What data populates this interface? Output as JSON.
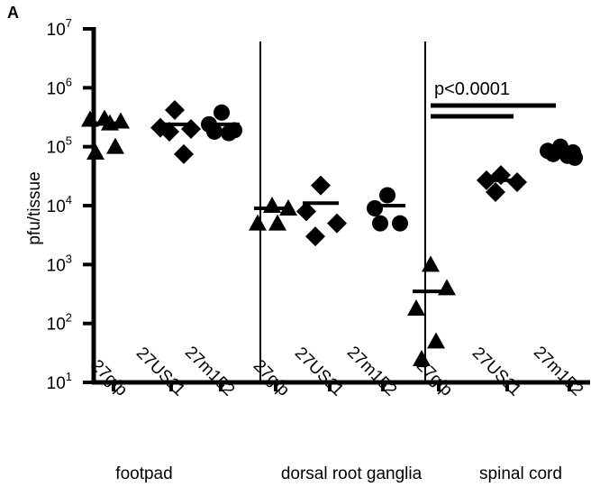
{
  "chart_data": {
    "type": "scatter",
    "panel_letter": "A",
    "ylabel": "pfu/tissue",
    "yscale": "log",
    "ylim": [
      10,
      10000000
    ],
    "yticks": [
      {
        "value": 10,
        "base": "10",
        "exp": "1"
      },
      {
        "value": 100,
        "base": "10",
        "exp": "2"
      },
      {
        "value": 1000,
        "base": "10",
        "exp": "3"
      },
      {
        "value": 10000,
        "base": "10",
        "exp": "4"
      },
      {
        "value": 100000,
        "base": "10",
        "exp": "5"
      },
      {
        "value": 1000000,
        "base": "10",
        "exp": "6"
      },
      {
        "value": 10000000,
        "base": "10",
        "exp": "7"
      }
    ],
    "groups": [
      {
        "name": "footpad",
        "categories": [
          {
            "label": "27gfp",
            "marker": "triangle",
            "values": [
              300000,
              270000,
              290000,
              250000,
              80000,
              100000
            ],
            "median": 250000
          },
          {
            "label": "27US11",
            "marker": "diamond",
            "values": [
              420000,
              210000,
              200000,
              180000,
              75000
            ],
            "median": 240000
          },
          {
            "label": "27m152",
            "marker": "circle",
            "values": [
              380000,
              240000,
              190000,
              180000,
              170000
            ],
            "median": 240000
          }
        ]
      },
      {
        "name": "dorsal root ganglia",
        "categories": [
          {
            "label": "27gfp",
            "marker": "triangle",
            "values": [
              10000,
              9000,
              5000,
              5000
            ],
            "median": 9000
          },
          {
            "label": "27US11",
            "marker": "diamond",
            "values": [
              22000,
              8000,
              5000,
              3000
            ],
            "median": 11000
          },
          {
            "label": "27m152",
            "marker": "circle",
            "values": [
              15000,
              9000,
              5000,
              5000
            ],
            "median": 10000
          }
        ]
      },
      {
        "name": "spinal cord",
        "categories": [
          {
            "label": "27gfp",
            "marker": "triangle",
            "values": [
              1000,
              400,
              180,
              50,
              25
            ],
            "median": 350
          },
          {
            "label": "27US11",
            "marker": "diamond",
            "values": [
              33000,
              27000,
              25000,
              17000
            ],
            "median": 27000
          },
          {
            "label": "27m152",
            "marker": "circle",
            "values": [
              100000,
              85000,
              80000,
              75000,
              70000,
              65000
            ],
            "median": 80000
          }
        ]
      }
    ],
    "annotation": {
      "text": "p<0.0001"
    },
    "grid": false,
    "legend": "none"
  }
}
